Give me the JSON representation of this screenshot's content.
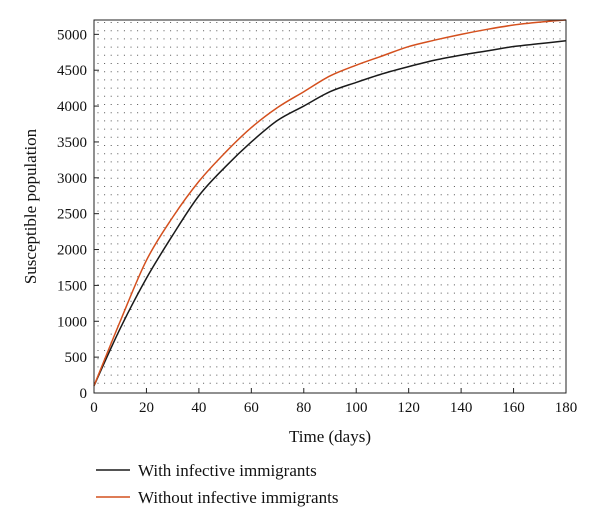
{
  "chart_data": {
    "type": "line",
    "xlabel": "Time (days)",
    "ylabel": "Susceptible population",
    "xlim": [
      0,
      180
    ],
    "ylim": [
      0,
      5200
    ],
    "x_ticks": [
      0,
      20,
      40,
      60,
      80,
      100,
      120,
      140,
      160,
      180
    ],
    "y_ticks": [
      0,
      500,
      1000,
      1500,
      2000,
      2500,
      3000,
      3500,
      4000,
      4500,
      5000
    ],
    "grid": "dotted",
    "legend_position": "below",
    "x": [
      0,
      10,
      20,
      30,
      40,
      50,
      60,
      70,
      80,
      90,
      100,
      110,
      120,
      130,
      140,
      150,
      160,
      170,
      180
    ],
    "series": [
      {
        "name": "With infective immigrants",
        "color": "#1a1a1a",
        "values": [
          100,
          900,
          1600,
          2200,
          2750,
          3150,
          3500,
          3800,
          4000,
          4200,
          4330,
          4450,
          4550,
          4640,
          4710,
          4770,
          4830,
          4870,
          4910
        ]
      },
      {
        "name": "Without infective immigrants",
        "color": "#d4501e",
        "values": [
          100,
          1000,
          1850,
          2450,
          2950,
          3350,
          3700,
          3980,
          4200,
          4420,
          4570,
          4700,
          4830,
          4920,
          5000,
          5070,
          5130,
          5170,
          5200
        ]
      }
    ]
  }
}
